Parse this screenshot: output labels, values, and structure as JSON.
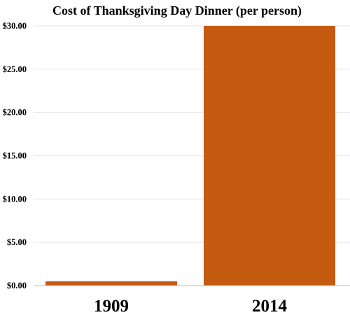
{
  "chart_data": {
    "type": "bar",
    "title": "Cost of Thanksgiving Day Dinner (per person)",
    "categories": [
      "1909",
      "2014"
    ],
    "values": [
      0.5,
      30.0
    ],
    "xlabel": "",
    "ylabel": "",
    "ylim": [
      0,
      30
    ],
    "yticks": [
      0,
      5,
      10,
      15,
      20,
      25,
      30
    ],
    "ytick_labels": [
      "$0.00",
      "$5.00",
      "$10.00",
      "$15.00",
      "$20.00",
      "$25.00",
      "$30.00"
    ],
    "grid": true,
    "legend": "none",
    "bar_color": "#C55A11"
  }
}
